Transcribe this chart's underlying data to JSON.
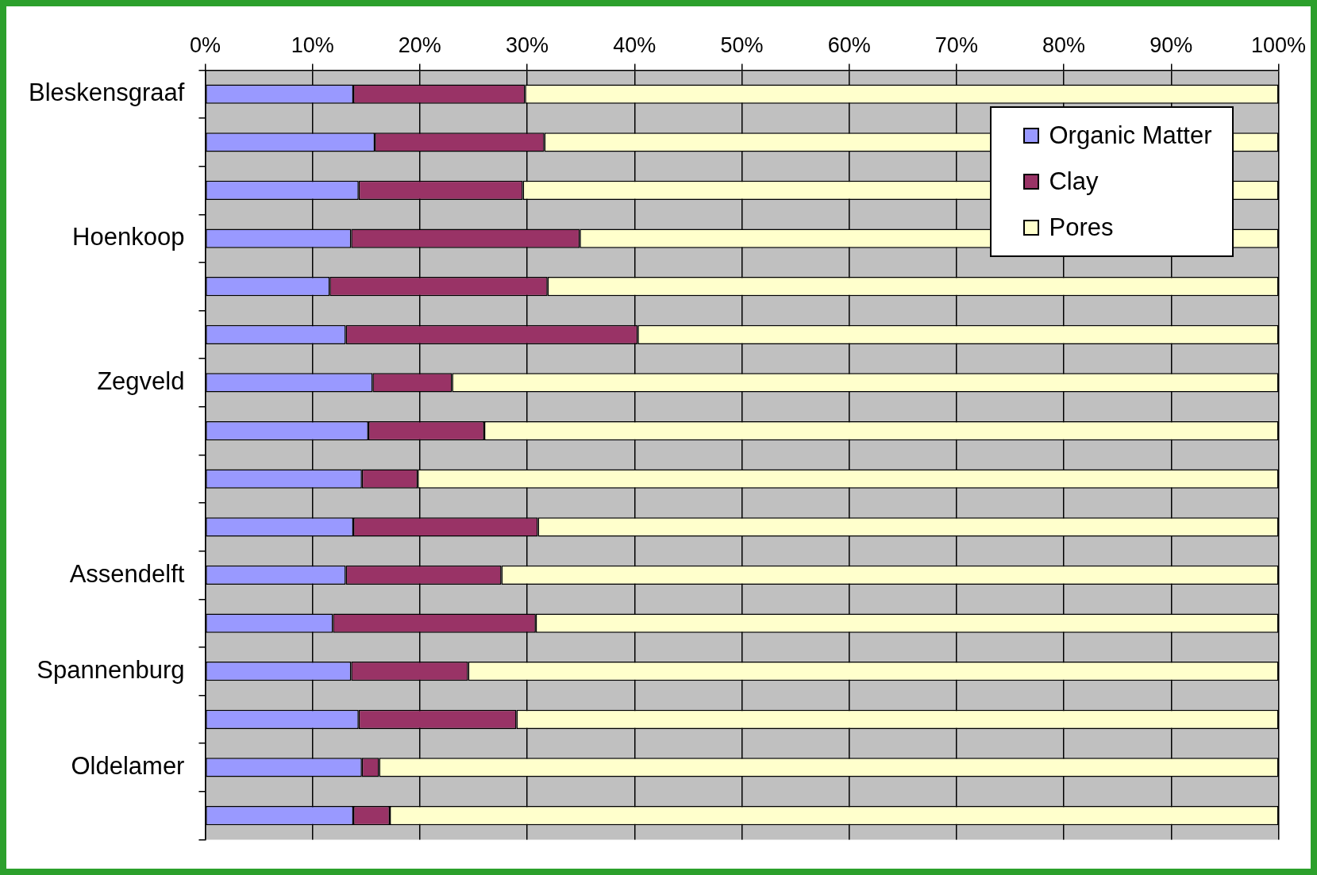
{
  "chart_data": {
    "type": "bar",
    "orientation": "horizontal",
    "stacked": true,
    "categories": [
      "Bleskensgraaf",
      null,
      null,
      "Hoenkoop",
      null,
      null,
      "Zegveld",
      null,
      null,
      null,
      "Assendelft",
      null,
      "Spannenburg",
      null,
      "Oldelamer",
      null
    ],
    "series": [
      {
        "name": "Organic Matter",
        "color": "#9999ff",
        "values": [
          13.8,
          15.8,
          14.3,
          13.6,
          11.6,
          13.1,
          15.6,
          15.2,
          14.6,
          13.8,
          13.1,
          11.9,
          13.6,
          14.3,
          14.6,
          13.8
        ]
      },
      {
        "name": "Clay",
        "color": "#993366",
        "values": [
          16.0,
          15.8,
          15.3,
          21.3,
          20.3,
          27.2,
          7.4,
          10.8,
          5.2,
          17.2,
          14.5,
          18.9,
          10.9,
          14.7,
          1.6,
          3.4
        ]
      },
      {
        "name": "Pores",
        "color": "#ffffcc",
        "values": [
          70.2,
          68.4,
          70.4,
          65.1,
          68.1,
          59.7,
          77.0,
          74.0,
          80.2,
          69.0,
          72.4,
          69.2,
          75.5,
          71.0,
          83.8,
          82.8
        ]
      }
    ],
    "xlim": [
      0,
      100
    ],
    "xticks": [
      {
        "value": 0,
        "label": "0%"
      },
      {
        "value": 10,
        "label": "10%"
      },
      {
        "value": 20,
        "label": "20%"
      },
      {
        "value": 30,
        "label": "30%"
      },
      {
        "value": 40,
        "label": "40%"
      },
      {
        "value": 50,
        "label": "50%"
      },
      {
        "value": 60,
        "label": "60%"
      },
      {
        "value": 70,
        "label": "70%"
      },
      {
        "value": 80,
        "label": "80%"
      },
      {
        "value": 90,
        "label": "90%"
      },
      {
        "value": 100,
        "label": "100%"
      }
    ],
    "grid": "x",
    "legend": "top right"
  }
}
